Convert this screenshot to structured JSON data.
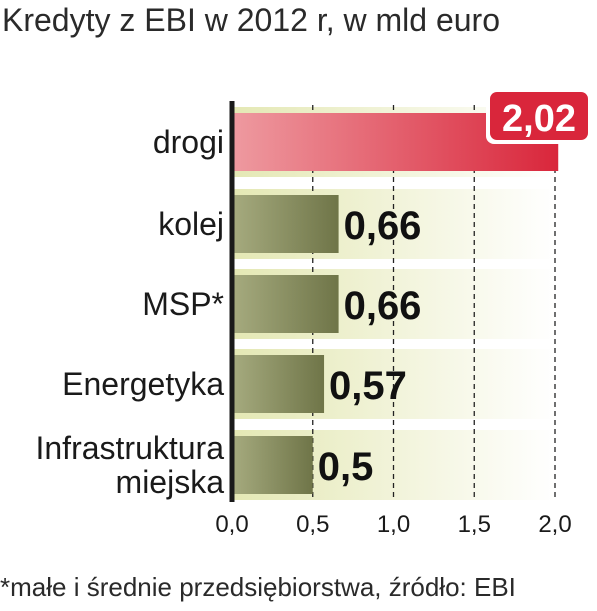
{
  "chart_data": {
    "type": "bar",
    "orientation": "horizontal",
    "title": "Kredyty z EBI w 2012 r, w mld euro",
    "categories": [
      [
        "drogi"
      ],
      [
        "kolej"
      ],
      [
        "MSP*"
      ],
      [
        "Energetyka"
      ],
      [
        "Infrastruktura",
        "miejska"
      ]
    ],
    "values": [
      2.02,
      0.66,
      0.66,
      0.57,
      0.5
    ],
    "value_labels": [
      "2,02",
      "0,66",
      "0,66",
      "0,57",
      "0,5"
    ],
    "xlim": [
      0,
      2.0
    ],
    "xticks": [
      0,
      0.5,
      1.0,
      1.5,
      2.0
    ],
    "xtick_labels": [
      "0,0",
      "0,5",
      "1,0",
      "1,5",
      "2,0"
    ],
    "xlabel": "",
    "ylabel": "",
    "grid": "vertical dashed",
    "highlight_index": 0,
    "colors": {
      "highlight": "#d9263b",
      "highlight_light": "#ee9aa0",
      "bar": "#6f7548",
      "bar_light": "#a6ab7f",
      "label_box": "#d9263b",
      "background_band": "#edf0c8",
      "axis": "#1a1a1a"
    }
  },
  "footnote": "*małe i średnie przedsiębiorstwa, źródło: EBI"
}
